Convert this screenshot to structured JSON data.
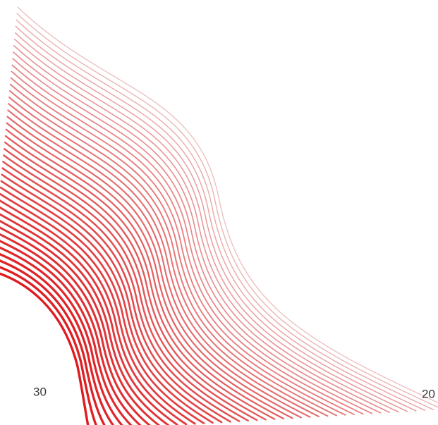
{
  "page_numbers": {
    "left": "30",
    "right": "20"
  }
}
